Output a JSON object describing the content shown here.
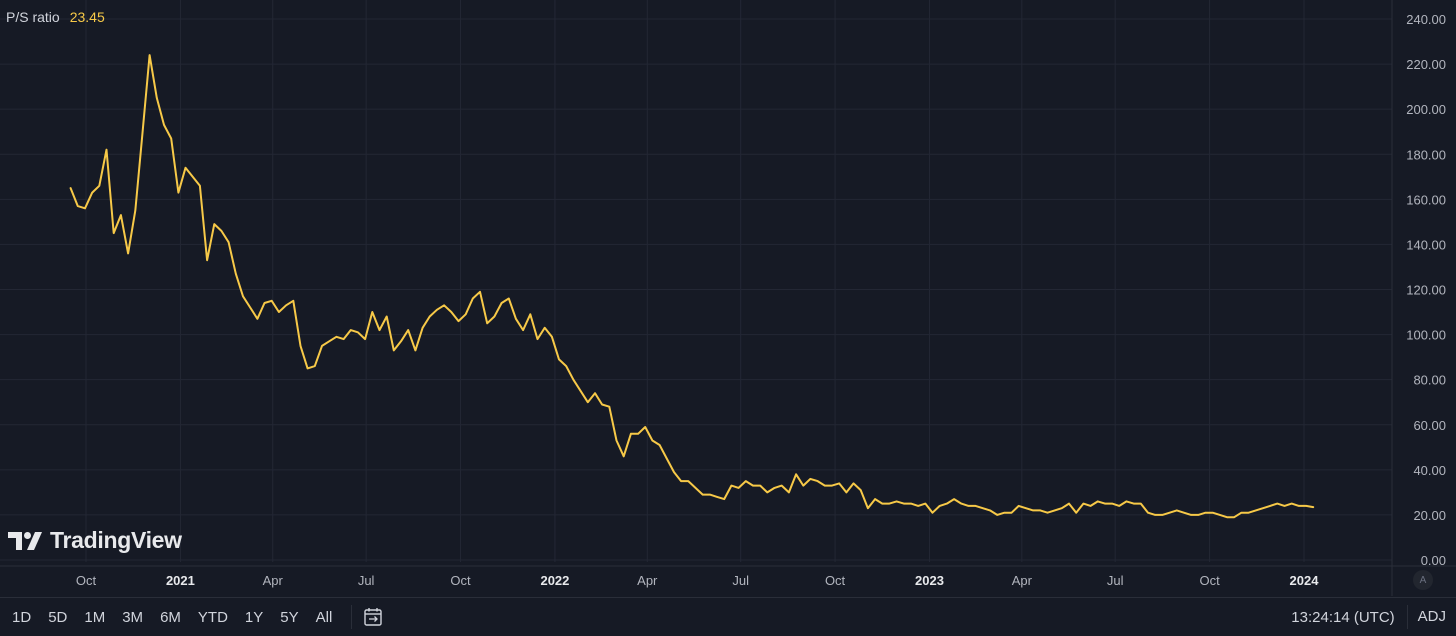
{
  "legend": {
    "label": "P/S ratio",
    "value": "23.45"
  },
  "logo": {
    "text": "TradingView"
  },
  "axis_corner": {
    "label": "A"
  },
  "bottom_bar": {
    "ranges": [
      "1D",
      "5D",
      "1M",
      "3M",
      "6M",
      "YTD",
      "1Y",
      "5Y",
      "All"
    ],
    "clock": "13:24:14 (UTC)",
    "adj": "ADJ"
  },
  "colors": {
    "background": "#161a25",
    "line": "#f7c948",
    "grid": "#232734",
    "text": "#d1d4dc"
  },
  "chart_data": {
    "type": "line",
    "title": "",
    "xlabel": "",
    "ylabel": "",
    "ylim": [
      0,
      240
    ],
    "y_ticks": [
      "0.00",
      "20.00",
      "40.00",
      "60.00",
      "80.00",
      "100.00",
      "120.00",
      "140.00",
      "160.00",
      "180.00",
      "200.00",
      "220.00",
      "240.00"
    ],
    "x_ticks": [
      {
        "label": "Oct",
        "x": "2020-10-01",
        "bold": false
      },
      {
        "label": "2021",
        "x": "2021-01-01",
        "bold": true
      },
      {
        "label": "Apr",
        "x": "2021-04-01",
        "bold": false
      },
      {
        "label": "Jul",
        "x": "2021-07-01",
        "bold": false
      },
      {
        "label": "Oct",
        "x": "2021-10-01",
        "bold": false
      },
      {
        "label": "2022",
        "x": "2022-01-01",
        "bold": true
      },
      {
        "label": "Apr",
        "x": "2022-04-01",
        "bold": false
      },
      {
        "label": "Jul",
        "x": "2022-07-01",
        "bold": false
      },
      {
        "label": "Oct",
        "x": "2022-10-01",
        "bold": false
      },
      {
        "label": "2023",
        "x": "2023-01-01",
        "bold": true
      },
      {
        "label": "Apr",
        "x": "2023-04-01",
        "bold": false
      },
      {
        "label": "Jul",
        "x": "2023-07-01",
        "bold": false
      },
      {
        "label": "Oct",
        "x": "2023-10-01",
        "bold": false
      },
      {
        "label": "2024",
        "x": "2024-01-01",
        "bold": true
      }
    ],
    "grid": true,
    "series": [
      {
        "name": "P/S ratio",
        "color": "#f7c948",
        "points": [
          [
            "2020-09-16",
            165
          ],
          [
            "2020-09-23",
            157
          ],
          [
            "2020-09-30",
            156
          ],
          [
            "2020-10-07",
            163
          ],
          [
            "2020-10-14",
            166
          ],
          [
            "2020-10-21",
            182
          ],
          [
            "2020-10-28",
            145
          ],
          [
            "2020-11-04",
            153
          ],
          [
            "2020-11-11",
            136
          ],
          [
            "2020-11-18",
            155
          ],
          [
            "2020-11-25",
            189
          ],
          [
            "2020-12-02",
            224
          ],
          [
            "2020-12-09",
            205
          ],
          [
            "2020-12-16",
            193
          ],
          [
            "2020-12-23",
            187
          ],
          [
            "2020-12-30",
            163
          ],
          [
            "2021-01-06",
            174
          ],
          [
            "2021-01-13",
            170
          ],
          [
            "2021-01-20",
            166
          ],
          [
            "2021-01-27",
            133
          ],
          [
            "2021-02-03",
            149
          ],
          [
            "2021-02-10",
            146
          ],
          [
            "2021-02-17",
            141
          ],
          [
            "2021-02-24",
            127
          ],
          [
            "2021-03-03",
            117
          ],
          [
            "2021-03-10",
            112
          ],
          [
            "2021-03-17",
            107
          ],
          [
            "2021-03-24",
            114
          ],
          [
            "2021-03-31",
            115
          ],
          [
            "2021-04-07",
            110
          ],
          [
            "2021-04-14",
            113
          ],
          [
            "2021-04-21",
            115
          ],
          [
            "2021-04-28",
            95
          ],
          [
            "2021-05-05",
            85
          ],
          [
            "2021-05-12",
            86
          ],
          [
            "2021-05-19",
            95
          ],
          [
            "2021-05-26",
            97
          ],
          [
            "2021-06-02",
            99
          ],
          [
            "2021-06-09",
            98
          ],
          [
            "2021-06-16",
            102
          ],
          [
            "2021-06-23",
            101
          ],
          [
            "2021-06-30",
            98
          ],
          [
            "2021-07-07",
            110
          ],
          [
            "2021-07-14",
            102
          ],
          [
            "2021-07-21",
            108
          ],
          [
            "2021-07-28",
            93
          ],
          [
            "2021-08-04",
            97
          ],
          [
            "2021-08-11",
            102
          ],
          [
            "2021-08-18",
            93
          ],
          [
            "2021-08-25",
            103
          ],
          [
            "2021-09-01",
            108
          ],
          [
            "2021-09-08",
            111
          ],
          [
            "2021-09-15",
            113
          ],
          [
            "2021-09-22",
            110
          ],
          [
            "2021-09-29",
            106
          ],
          [
            "2021-10-06",
            109
          ],
          [
            "2021-10-13",
            116
          ],
          [
            "2021-10-20",
            119
          ],
          [
            "2021-10-27",
            105
          ],
          [
            "2021-11-03",
            108
          ],
          [
            "2021-11-10",
            114
          ],
          [
            "2021-11-17",
            116
          ],
          [
            "2021-11-24",
            107
          ],
          [
            "2021-12-01",
            102
          ],
          [
            "2021-12-08",
            109
          ],
          [
            "2021-12-15",
            98
          ],
          [
            "2021-12-22",
            103
          ],
          [
            "2021-12-29",
            99
          ],
          [
            "2022-01-05",
            89
          ],
          [
            "2022-01-12",
            86
          ],
          [
            "2022-01-19",
            80
          ],
          [
            "2022-01-26",
            75
          ],
          [
            "2022-02-02",
            70
          ],
          [
            "2022-02-09",
            74
          ],
          [
            "2022-02-16",
            69
          ],
          [
            "2022-02-23",
            68
          ],
          [
            "2022-03-02",
            53
          ],
          [
            "2022-03-09",
            46
          ],
          [
            "2022-03-16",
            56
          ],
          [
            "2022-03-23",
            56
          ],
          [
            "2022-03-30",
            59
          ],
          [
            "2022-04-06",
            53
          ],
          [
            "2022-04-13",
            51
          ],
          [
            "2022-04-20",
            45
          ],
          [
            "2022-04-27",
            39
          ],
          [
            "2022-05-04",
            35
          ],
          [
            "2022-05-11",
            35
          ],
          [
            "2022-05-18",
            32
          ],
          [
            "2022-05-25",
            29
          ],
          [
            "2022-06-01",
            29
          ],
          [
            "2022-06-08",
            28
          ],
          [
            "2022-06-15",
            27
          ],
          [
            "2022-06-22",
            33
          ],
          [
            "2022-06-29",
            32
          ],
          [
            "2022-07-06",
            35
          ],
          [
            "2022-07-13",
            33
          ],
          [
            "2022-07-20",
            33
          ],
          [
            "2022-07-27",
            30
          ],
          [
            "2022-08-03",
            32
          ],
          [
            "2022-08-10",
            33
          ],
          [
            "2022-08-17",
            30
          ],
          [
            "2022-08-24",
            38
          ],
          [
            "2022-08-31",
            33
          ],
          [
            "2022-09-07",
            36
          ],
          [
            "2022-09-14",
            35
          ],
          [
            "2022-09-21",
            33
          ],
          [
            "2022-09-28",
            33
          ],
          [
            "2022-10-05",
            34
          ],
          [
            "2022-10-12",
            30
          ],
          [
            "2022-10-19",
            34
          ],
          [
            "2022-10-26",
            31
          ],
          [
            "2022-11-02",
            23
          ],
          [
            "2022-11-09",
            27
          ],
          [
            "2022-11-16",
            25
          ],
          [
            "2022-11-23",
            25
          ],
          [
            "2022-11-30",
            26
          ],
          [
            "2022-12-07",
            25
          ],
          [
            "2022-12-14",
            25
          ],
          [
            "2022-12-21",
            24
          ],
          [
            "2022-12-28",
            25
          ],
          [
            "2023-01-04",
            21
          ],
          [
            "2023-01-11",
            24
          ],
          [
            "2023-01-18",
            25
          ],
          [
            "2023-01-25",
            27
          ],
          [
            "2023-02-01",
            25
          ],
          [
            "2023-02-08",
            24
          ],
          [
            "2023-02-15",
            24
          ],
          [
            "2023-02-22",
            23
          ],
          [
            "2023-03-01",
            22
          ],
          [
            "2023-03-08",
            20
          ],
          [
            "2023-03-15",
            21
          ],
          [
            "2023-03-22",
            21
          ],
          [
            "2023-03-29",
            24
          ],
          [
            "2023-04-05",
            23
          ],
          [
            "2023-04-12",
            22
          ],
          [
            "2023-04-19",
            22
          ],
          [
            "2023-04-26",
            21
          ],
          [
            "2023-05-03",
            22
          ],
          [
            "2023-05-10",
            23
          ],
          [
            "2023-05-17",
            25
          ],
          [
            "2023-05-24",
            21
          ],
          [
            "2023-05-31",
            25
          ],
          [
            "2023-06-07",
            24
          ],
          [
            "2023-06-14",
            26
          ],
          [
            "2023-06-21",
            25
          ],
          [
            "2023-06-28",
            25
          ],
          [
            "2023-07-05",
            24
          ],
          [
            "2023-07-12",
            26
          ],
          [
            "2023-07-19",
            25
          ],
          [
            "2023-07-26",
            25
          ],
          [
            "2023-08-02",
            21
          ],
          [
            "2023-08-09",
            20
          ],
          [
            "2023-08-16",
            20
          ],
          [
            "2023-08-23",
            21
          ],
          [
            "2023-08-30",
            22
          ],
          [
            "2023-09-06",
            21
          ],
          [
            "2023-09-13",
            20
          ],
          [
            "2023-09-20",
            20
          ],
          [
            "2023-09-27",
            21
          ],
          [
            "2023-10-04",
            21
          ],
          [
            "2023-10-11",
            20
          ],
          [
            "2023-10-18",
            19
          ],
          [
            "2023-10-25",
            19
          ],
          [
            "2023-11-01",
            21
          ],
          [
            "2023-11-08",
            21
          ],
          [
            "2023-11-15",
            22
          ],
          [
            "2023-11-22",
            23
          ],
          [
            "2023-11-29",
            24
          ],
          [
            "2023-12-06",
            25
          ],
          [
            "2023-12-13",
            24
          ],
          [
            "2023-12-20",
            25
          ],
          [
            "2023-12-27",
            24
          ],
          [
            "2024-01-03",
            24
          ],
          [
            "2024-01-10",
            23.45
          ]
        ]
      }
    ]
  }
}
